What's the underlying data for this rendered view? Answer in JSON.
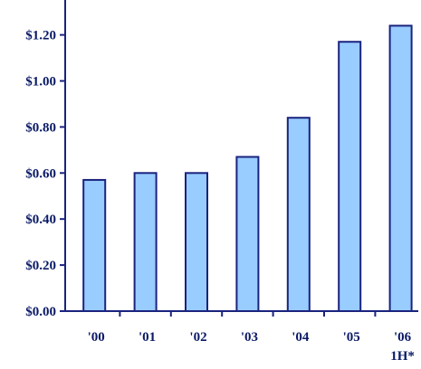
{
  "chart_data": {
    "type": "bar",
    "title": "",
    "xlabel": "",
    "ylabel": "",
    "categories": [
      "'00",
      "'01",
      "'02",
      "'03",
      "'04",
      "'05",
      "'06"
    ],
    "category_sublabels": [
      "",
      "",
      "",
      "",
      "",
      "",
      "1H*"
    ],
    "values": [
      0.57,
      0.6,
      0.6,
      0.67,
      0.84,
      1.17,
      1.24
    ],
    "ylim": [
      0,
      1.3
    ],
    "yticks": [
      0.0,
      0.2,
      0.4,
      0.6,
      0.8,
      1.0,
      1.2
    ],
    "ytick_labels": [
      "$0.00",
      "$0.20",
      "$0.40",
      "$0.60",
      "$0.80",
      "$1.00",
      "$1.20"
    ],
    "grid": false,
    "colors": {
      "bar_fill": "#99ccff",
      "bar_stroke": "#1a237e",
      "text": "#0a1a66"
    }
  }
}
